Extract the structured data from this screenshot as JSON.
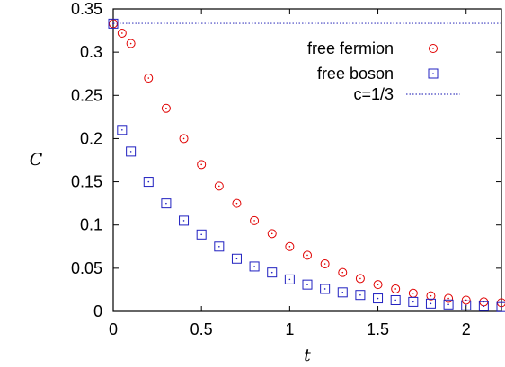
{
  "chart_data": {
    "type": "scatter",
    "xlabel": "t",
    "ylabel": "C",
    "xlim": [
      0,
      2.2
    ],
    "ylim": [
      0,
      0.35
    ],
    "x_ticks": [
      "0",
      "0.5",
      "1",
      "1.5",
      "2"
    ],
    "y_ticks": [
      "0",
      "0.05",
      "0.1",
      "0.15",
      "0.2",
      "0.25",
      "0.3",
      "0.35"
    ],
    "x_tick_values": [
      0,
      0.5,
      1,
      1.5,
      2
    ],
    "y_tick_values": [
      0,
      0.05,
      0.1,
      0.15,
      0.2,
      0.25,
      0.3,
      0.35
    ],
    "grid": false,
    "legend_position": "top-right",
    "series": [
      {
        "name": "free fermion",
        "marker": "circle-dot",
        "color": "#e00000",
        "x": [
          0,
          0.05,
          0.1,
          0.2,
          0.3,
          0.4,
          0.5,
          0.6,
          0.7,
          0.8,
          0.9,
          1.0,
          1.1,
          1.2,
          1.3,
          1.4,
          1.5,
          1.6,
          1.7,
          1.8,
          1.9,
          2.0,
          2.1,
          2.2
        ],
        "y": [
          0.333,
          0.322,
          0.31,
          0.27,
          0.235,
          0.2,
          0.17,
          0.145,
          0.125,
          0.105,
          0.09,
          0.075,
          0.065,
          0.055,
          0.045,
          0.038,
          0.031,
          0.026,
          0.021,
          0.018,
          0.015,
          0.013,
          0.011,
          0.01
        ]
      },
      {
        "name": "free boson",
        "marker": "square-dot",
        "color": "#2020c0",
        "x": [
          0,
          0.05,
          0.1,
          0.2,
          0.3,
          0.4,
          0.5,
          0.6,
          0.7,
          0.8,
          0.9,
          1.0,
          1.1,
          1.2,
          1.3,
          1.4,
          1.5,
          1.6,
          1.7,
          1.8,
          1.9,
          2.0,
          2.1,
          2.2
        ],
        "y": [
          0.333,
          0.21,
          0.185,
          0.15,
          0.125,
          0.105,
          0.089,
          0.075,
          0.061,
          0.052,
          0.045,
          0.037,
          0.031,
          0.026,
          0.022,
          0.019,
          0.015,
          0.013,
          0.011,
          0.009,
          0.008,
          0.007,
          0.006,
          0.005
        ]
      },
      {
        "name": "c=1/3",
        "marker": "dotted-line",
        "color": "#4040c0",
        "y": 0.333333
      }
    ]
  }
}
